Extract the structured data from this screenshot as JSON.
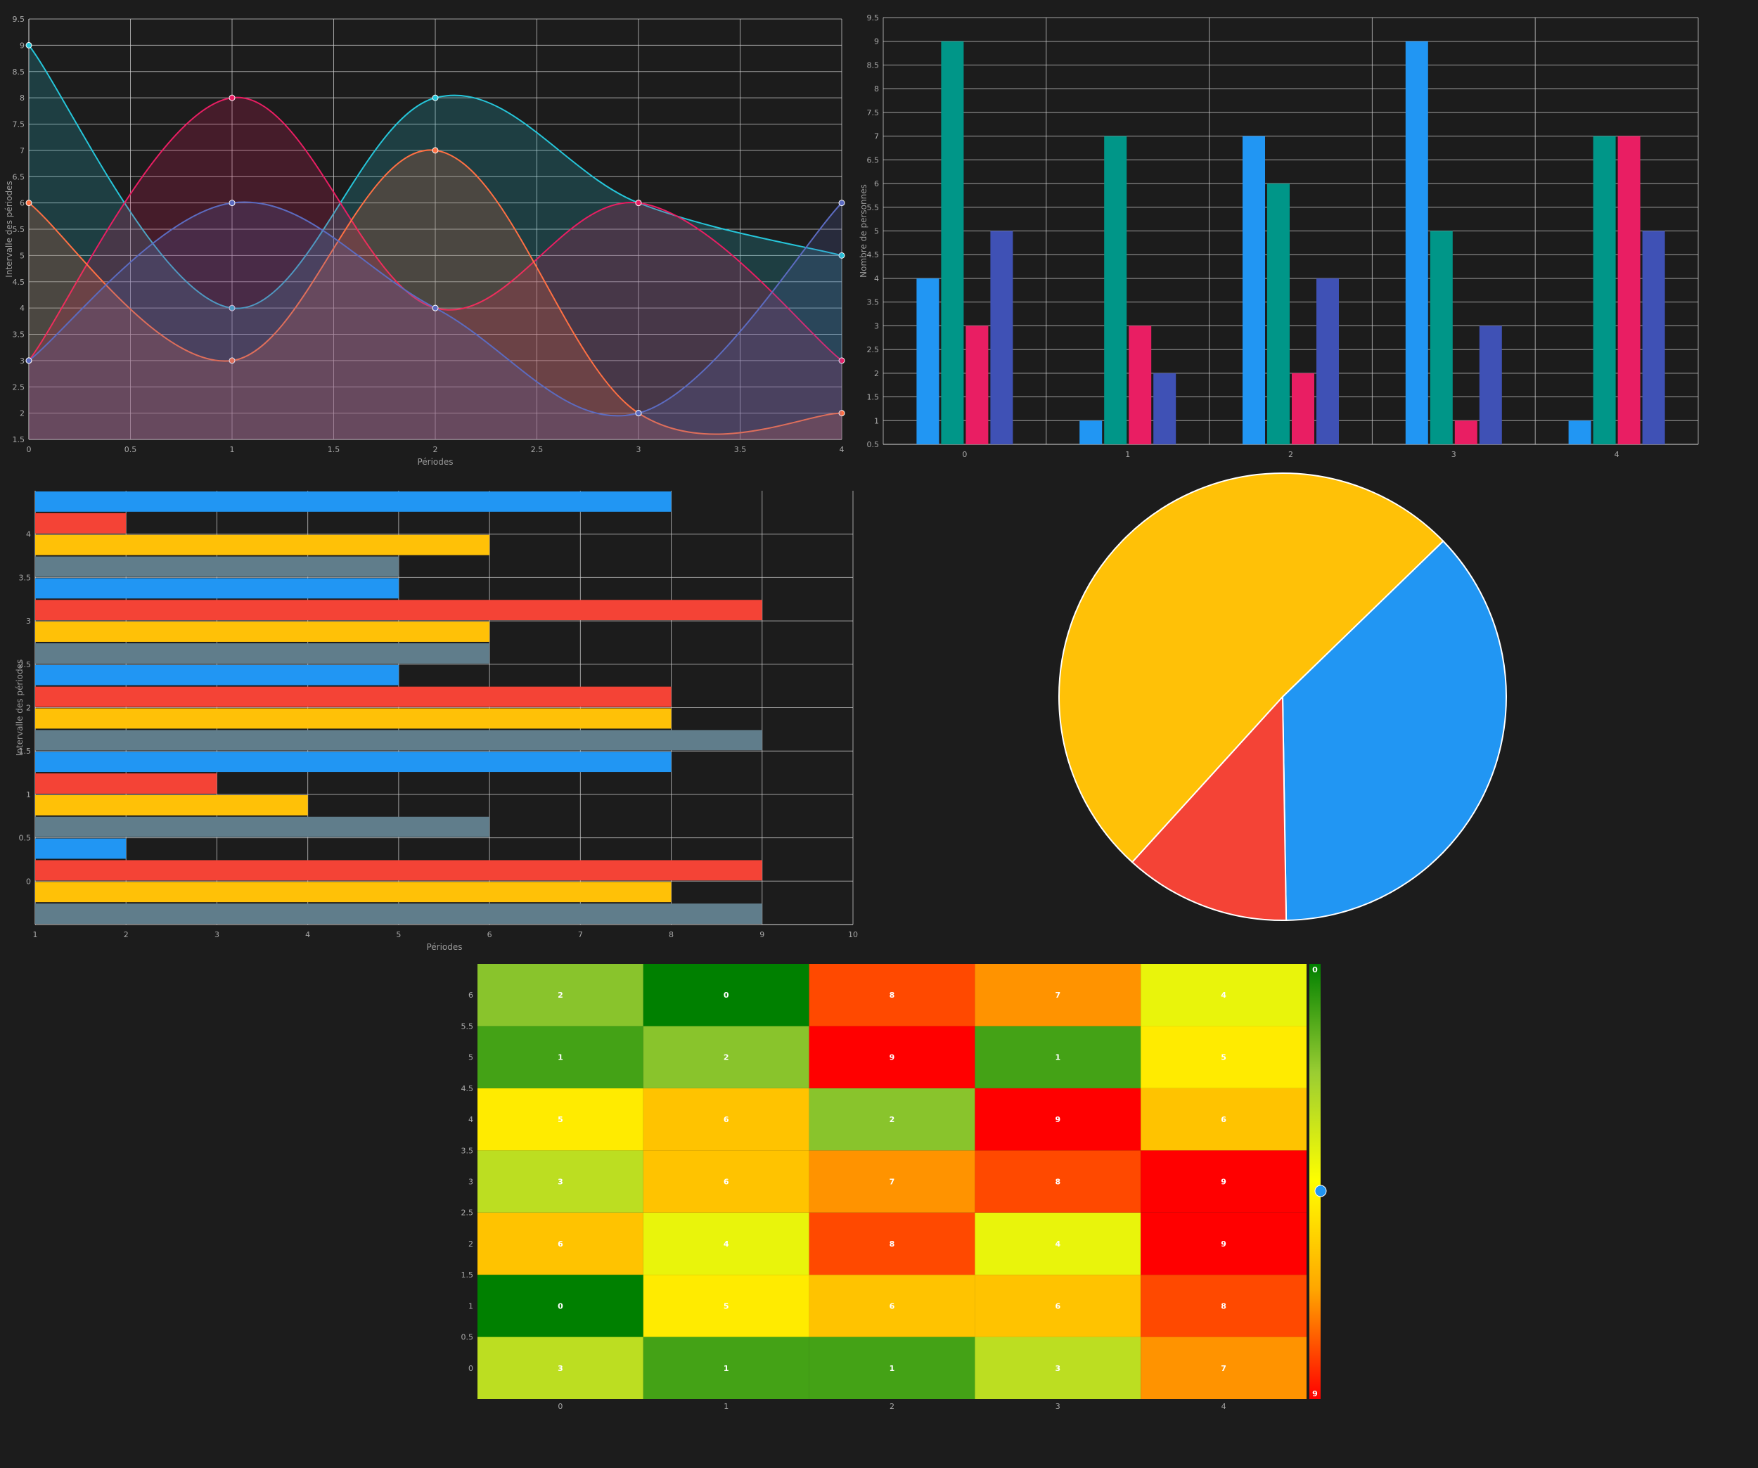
{
  "chart_data": [
    {
      "type": "area",
      "xlabel": "Périodes",
      "ylabel": "Intervalle des périodes",
      "x": [
        0,
        1,
        2,
        3,
        4
      ],
      "xlim": [
        0,
        4
      ],
      "ylim": [
        1.5,
        9.5
      ],
      "grid": true,
      "series": [
        {
          "values": [
            9,
            4,
            8,
            6,
            5
          ],
          "color": "#26c6da"
        },
        {
          "values": [
            3,
            8,
            4,
            6,
            3
          ],
          "color": "#e91e63"
        },
        {
          "values": [
            6,
            3,
            7,
            2,
            2
          ],
          "color": "#ff7043"
        },
        {
          "values": [
            3,
            6,
            4,
            2,
            6
          ],
          "color": "#5c6bc0"
        }
      ]
    },
    {
      "type": "bar",
      "ylabel": "Nombre de personnes",
      "categories": [
        "0",
        "1",
        "2",
        "3",
        "4"
      ],
      "ylim": [
        0.5,
        9.5
      ],
      "grid": true,
      "series": [
        {
          "values": [
            4,
            1,
            7,
            9,
            1
          ],
          "color": "#2196f3"
        },
        {
          "values": [
            9,
            7,
            6,
            5,
            7
          ],
          "color": "#009688"
        },
        {
          "values": [
            3,
            3,
            2,
            1,
            7
          ],
          "color": "#e91e63"
        },
        {
          "values": [
            5,
            2,
            4,
            3,
            5
          ],
          "color": "#3f51b5"
        }
      ]
    },
    {
      "type": "bar",
      "orientation": "horizontal",
      "xlabel": "Périodes",
      "ylabel": "Intervalle des périodes",
      "categories": [
        0,
        1,
        2,
        3,
        4
      ],
      "xlim": [
        1,
        10
      ],
      "ylim": [
        -0.5,
        4.5
      ],
      "grid": true,
      "series": [
        {
          "values": [
            9,
            6,
            9,
            6,
            5
          ],
          "color": "#607d8b"
        },
        {
          "values": [
            8,
            4,
            8,
            6,
            6
          ],
          "color": "#ffc107"
        },
        {
          "values": [
            9,
            3,
            8,
            9,
            2
          ],
          "color": "#f44336"
        },
        {
          "values": [
            2,
            8,
            5,
            5,
            8
          ],
          "color": "#2196f3"
        }
      ]
    },
    {
      "type": "pie",
      "slices": [
        {
          "value": 37,
          "color": "#2196f3"
        },
        {
          "value": 12,
          "color": "#f44336"
        },
        {
          "value": 51,
          "color": "#ffc107"
        }
      ]
    },
    {
      "type": "heatmap",
      "x": [
        0,
        1,
        2,
        3,
        4
      ],
      "y": [
        0,
        1,
        2,
        3,
        4,
        5,
        6
      ],
      "rows": [
        [
          3,
          1,
          1,
          3,
          7
        ],
        [
          0,
          5,
          6,
          6,
          8
        ],
        [
          6,
          4,
          8,
          4,
          9
        ],
        [
          3,
          6,
          7,
          8,
          9
        ],
        [
          5,
          6,
          2,
          9,
          6
        ],
        [
          1,
          2,
          9,
          1,
          5
        ],
        [
          2,
          0,
          8,
          7,
          4
        ]
      ],
      "colorbar": {
        "min": 0,
        "max": 9,
        "min_label": "0",
        "max_label": "9"
      },
      "colorscale": [
        "#008000",
        "#9acd32",
        "#ffff00",
        "#ffa500",
        "#ff0000"
      ]
    }
  ]
}
